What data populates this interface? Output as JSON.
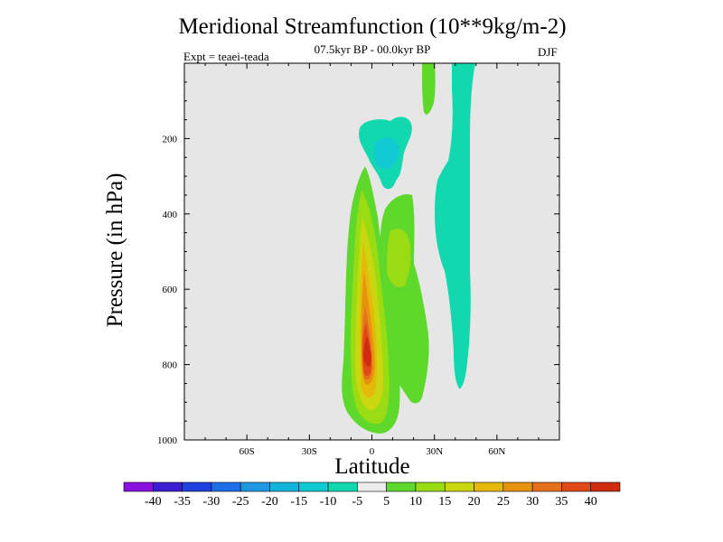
{
  "chart_data": {
    "type": "heatmap",
    "title": "Meridional Streamfunction (10**9kg/m-2)",
    "subtitle": "07.5kyr BP - 00.0kyr BP",
    "experiment": "Expt = teaei-teada",
    "season": "DJF",
    "xlabel": "Latitude",
    "ylabel": "Pressure (in hPa)",
    "x_range": [
      -90,
      90
    ],
    "y_range": [
      1000,
      0
    ],
    "x_ticks": [
      {
        "value": -60,
        "label": "60S"
      },
      {
        "value": -30,
        "label": "30S"
      },
      {
        "value": 0,
        "label": "0"
      },
      {
        "value": 30,
        "label": "30N"
      },
      {
        "value": 60,
        "label": "60N"
      }
    ],
    "y_ticks": [
      {
        "value": 200,
        "label": "200"
      },
      {
        "value": 400,
        "label": "400"
      },
      {
        "value": 600,
        "label": "600"
      },
      {
        "value": 800,
        "label": "800"
      },
      {
        "value": 1000,
        "label": "1000"
      }
    ],
    "colorbar": {
      "labels": [
        "-40",
        "-35",
        "-30",
        "-25",
        "-20",
        "-15",
        "-10",
        "-5",
        "5",
        "10",
        "15",
        "20",
        "25",
        "30",
        "35",
        "40"
      ],
      "colors": [
        "#8a10e0",
        "#3c1ed2",
        "#2040e0",
        "#1e6ee8",
        "#1e96e0",
        "#12b4dc",
        "#10cad2",
        "#12d8b0",
        "#ececec",
        "#5ed82a",
        "#9adc14",
        "#cad60e",
        "#e6b80a",
        "#e69410",
        "#e4701c",
        "#e04818",
        "#d02c10"
      ]
    },
    "field": [
      {
        "level": -10,
        "color": "#12d8b0",
        "region": "upper tropical cell near the equator, ~150-300 hPa, 5S-20N"
      },
      {
        "level": -15,
        "color": "#12cad2",
        "region": "core of upper tropical cell near 5N, ~200-260 hPa"
      },
      {
        "level": 5,
        "color": "#5ed82a",
        "region": "northern lobe 0-25N, 250-900 hPa"
      },
      {
        "level": 10,
        "color": "#9adc14",
        "region": "northern lobe core ~10N, 350-650 hPa"
      },
      {
        "level": 5,
        "color": "#5ed82a",
        "region": "southern tropics 15S-10N, 220-990 hPa"
      },
      {
        "level": 10,
        "color": "#9adc14",
        "region": "10S-5N, 280-960 hPa"
      },
      {
        "level": 15,
        "color": "#cad60e",
        "region": "8S-3N, 320-940 hPa"
      },
      {
        "level": 20,
        "color": "#e6b80a",
        "region": "6S-2N, 380-900 hPa"
      },
      {
        "level": 25,
        "color": "#e69410",
        "region": "5S-1N, 430-870 hPa"
      },
      {
        "level": 30,
        "color": "#e4701c",
        "region": "4S-0, 540-840 hPa"
      },
      {
        "level": 35,
        "color": "#e04818",
        "region": "3S-1S, 640-820 hPa"
      },
      {
        "level": 40,
        "color": "#d02c10",
        "region": "peak near 2S, ~740-800 hPa"
      },
      {
        "level": -10,
        "color": "#12d8b0",
        "region": "northern subtropics 30N-50N, 0-900 hPa"
      },
      {
        "level": 5,
        "color": "#5ed82a",
        "region": "narrow column near 27N, 0-120 hPa"
      }
    ]
  }
}
